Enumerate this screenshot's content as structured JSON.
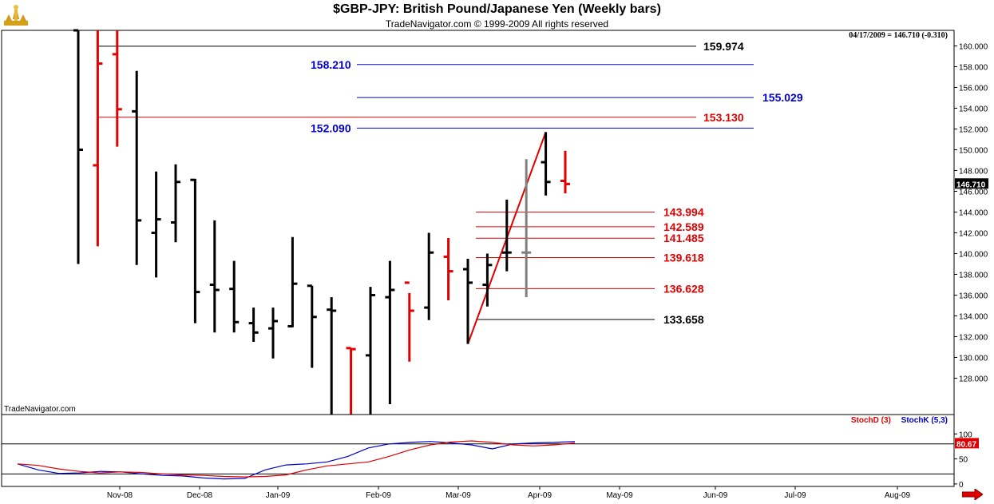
{
  "header": {
    "title": "$GBP-JPY:  British Pound/Japanese Yen  (Weekly bars)",
    "subtitle": "TradeNavigator.com © 1999-2009 All rights reserved",
    "quote": "04/17/2009 = 146.710 (-0.310)"
  },
  "watermark": "TradeNavigator.com",
  "colors": {
    "up_bar": "#000000",
    "down_bar": "#e00000",
    "blue_level": "#0000cc",
    "grid_line": "#000000"
  },
  "chart_data": {
    "type": "ohlc",
    "title": "$GBP-JPY:  British Pound/Japanese Yen  (Weekly bars)",
    "price_axis": {
      "ylim": [
        124.5,
        161.5
      ],
      "ticks": [
        128,
        130,
        132,
        134,
        136,
        138,
        140,
        142,
        144,
        146,
        148,
        150,
        152,
        154,
        156,
        158,
        160
      ]
    },
    "last_price": "146.710",
    "x_tick_labels": [
      "Nov-08",
      "Dec-08",
      "Jan-09",
      "Feb-09",
      "Mar-09",
      "Apr-09",
      "May-09",
      "Jun-09",
      "Jul-09",
      "Aug-09"
    ],
    "bars": [
      {
        "o": 161.5,
        "h": 163.5,
        "l": 139.0,
        "c": 150.0
      },
      {
        "o": 148.5,
        "h": 162.5,
        "l": 140.7,
        "c": 158.3
      },
      {
        "o": 159.2,
        "h": 161.5,
        "l": 150.3,
        "c": 153.9
      },
      {
        "o": 153.7,
        "h": 157.6,
        "l": 138.9,
        "c": 143.2
      },
      {
        "o": 142.0,
        "h": 147.9,
        "l": 137.7,
        "c": 143.3
      },
      {
        "o": 143.0,
        "h": 148.6,
        "l": 141.1,
        "c": 146.9
      },
      {
        "o": 147.1,
        "h": 147.2,
        "l": 133.3,
        "c": 136.3
      },
      {
        "o": 137.0,
        "h": 143.2,
        "l": 132.4,
        "c": 136.5
      },
      {
        "o": 136.6,
        "h": 139.3,
        "l": 132.4,
        "c": 133.4
      },
      {
        "o": 133.3,
        "h": 134.8,
        "l": 131.5,
        "c": 132.4
      },
      {
        "o": 132.8,
        "h": 134.8,
        "l": 129.9,
        "c": 133.5
      },
      {
        "o": 133.0,
        "h": 141.6,
        "l": 132.9,
        "c": 137.1
      },
      {
        "o": 136.9,
        "h": 136.9,
        "l": 129.0,
        "c": 133.9
      },
      {
        "o": 134.6,
        "h": 135.8,
        "l": 124.5,
        "c": 134.5
      },
      {
        "o": 130.9,
        "h": 130.9,
        "l": 124.5,
        "c": 130.8
      },
      {
        "o": 130.2,
        "h": 136.8,
        "l": 124.5,
        "c": 136.0
      },
      {
        "o": 135.8,
        "h": 139.3,
        "l": 125.5,
        "c": 136.5
      },
      {
        "o": 137.2,
        "h": 136.2,
        "l": 129.6,
        "c": 134.5
      },
      {
        "o": 134.8,
        "h": 142.0,
        "l": 133.6,
        "c": 140.1
      },
      {
        "o": 139.7,
        "h": 141.5,
        "l": 135.5,
        "c": 138.3
      },
      {
        "o": 138.5,
        "h": 139.5,
        "l": 131.3,
        "c": 137.2
      },
      {
        "o": 137.0,
        "h": 140.0,
        "l": 134.9,
        "c": 138.9
      },
      {
        "o": 140.1,
        "h": 145.2,
        "l": 138.3,
        "c": 140.1
      },
      {
        "o": 140.1,
        "h": 149.1,
        "l": 135.8,
        "c": 140.1
      },
      {
        "o": 148.8,
        "h": 151.7,
        "l": 145.6,
        "c": 146.9
      },
      {
        "o": 147.0,
        "h": 149.9,
        "l": 145.8,
        "c": 146.7
      }
    ],
    "bar_colors": [
      "black",
      "red",
      "red",
      "black",
      "black",
      "black",
      "black",
      "black",
      "black",
      "black",
      "black",
      "black",
      "black",
      "black",
      "red",
      "black",
      "black",
      "red",
      "black",
      "red",
      "black",
      "black",
      "black",
      "gray",
      "black",
      "red"
    ],
    "levels": [
      {
        "value": "159.974",
        "color": "black"
      },
      {
        "value": "158.210",
        "color": "blue"
      },
      {
        "value": "155.029",
        "color": "blue"
      },
      {
        "value": "153.130",
        "color": "red"
      },
      {
        "value": "152.090",
        "color": "blue"
      },
      {
        "value": "143.994",
        "color": "red"
      },
      {
        "value": "142.589",
        "color": "red"
      },
      {
        "value": "141.485",
        "color": "red"
      },
      {
        "value": "139.618",
        "color": "red"
      },
      {
        "value": "136.628",
        "color": "red"
      },
      {
        "value": "133.658",
        "color": "black"
      }
    ],
    "trend_line": {
      "from": {
        "bar": 20,
        "price": 131.3
      },
      "to": {
        "bar": 24,
        "price": 151.7
      }
    },
    "stochastic": {
      "ylim": [
        -5,
        110
      ],
      "ticks": [
        0,
        50,
        100
      ],
      "legend": [
        {
          "name": "StochD (3)",
          "color": "#e00000"
        },
        {
          "name": "StochK (5,3)",
          "color": "#0000cc"
        }
      ],
      "last_value": "80.67",
      "stochD": [
        40,
        37,
        30,
        25,
        22,
        24,
        23,
        20,
        18,
        17,
        15,
        14,
        15,
        18,
        28,
        36,
        40,
        44,
        55,
        68,
        78,
        84,
        86,
        83,
        78,
        76,
        78,
        82
      ],
      "stochK": [
        40,
        28,
        21,
        22,
        25,
        24,
        20,
        17,
        16,
        12,
        10,
        11,
        28,
        38,
        40,
        44,
        55,
        72,
        80,
        83,
        85,
        82,
        78,
        70,
        80,
        82,
        83,
        85
      ]
    }
  }
}
